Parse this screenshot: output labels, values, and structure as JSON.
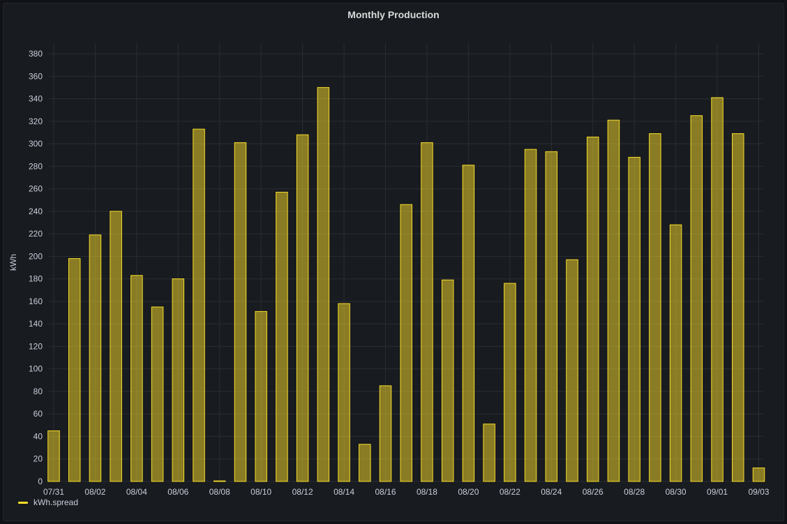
{
  "panel": {
    "title": "Monthly Production"
  },
  "chart_data": {
    "type": "bar",
    "title": "Monthly Production",
    "ylabel": "kWh",
    "xlabel": "",
    "ylim": [
      0,
      390
    ],
    "yticks": [
      0,
      20,
      40,
      60,
      80,
      100,
      120,
      140,
      160,
      180,
      200,
      220,
      240,
      260,
      280,
      300,
      320,
      340,
      360,
      380
    ],
    "x_tick_labels": [
      "07/31",
      "08/02",
      "08/04",
      "08/06",
      "08/08",
      "08/10",
      "08/12",
      "08/14",
      "08/16",
      "08/18",
      "08/20",
      "08/22",
      "08/24",
      "08/26",
      "08/28",
      "08/30",
      "09/01",
      "09/03"
    ],
    "categories": [
      "07/31",
      "08/01",
      "08/02",
      "08/03",
      "08/04",
      "08/05",
      "08/06",
      "08/07",
      "08/08",
      "08/09",
      "08/10",
      "08/11",
      "08/12",
      "08/13",
      "08/14",
      "08/15",
      "08/16",
      "08/17",
      "08/18",
      "08/19",
      "08/20",
      "08/21",
      "08/22",
      "08/23",
      "08/24",
      "08/25",
      "08/26",
      "08/27",
      "08/28",
      "08/29",
      "08/30",
      "08/31",
      "09/01",
      "09/02",
      "09/03"
    ],
    "series": [
      {
        "name": "kWh.spread",
        "color": "#fade2a",
        "values": [
          45,
          198,
          219,
          240,
          183,
          155,
          180,
          313,
          0.5,
          301,
          151,
          257,
          308,
          350,
          158,
          33,
          85,
          246,
          301,
          179,
          281,
          51,
          176,
          295,
          293,
          197,
          306,
          321,
          288,
          309,
          228,
          325,
          341,
          309,
          12
        ]
      }
    ],
    "grid": true,
    "legend": "bottom-left"
  },
  "legend": {
    "label": "kWh.spread",
    "color": "#fade2a"
  }
}
